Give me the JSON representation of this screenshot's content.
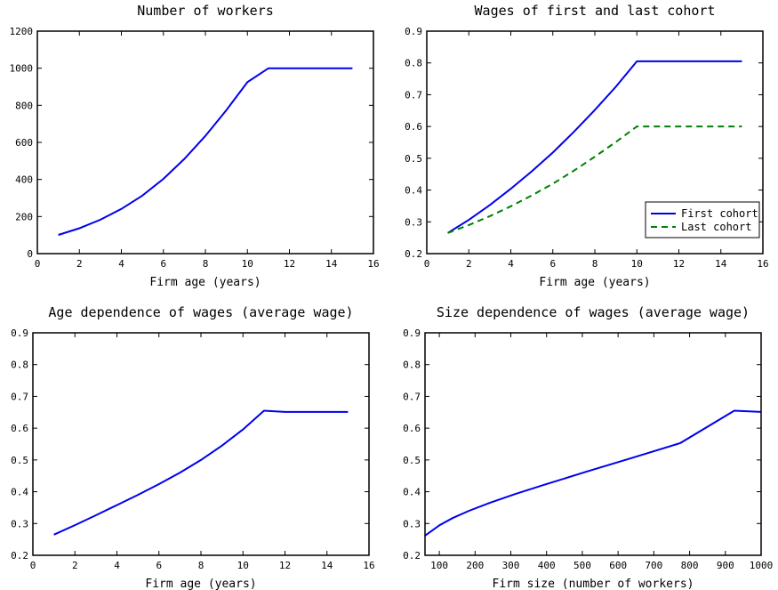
{
  "chart_data": [
    {
      "type": "line",
      "title": "Number of workers",
      "xlabel": "Firm age (years)",
      "ylabel": "",
      "xlim": [
        0,
        16
      ],
      "ylim": [
        0,
        1200
      ],
      "xticks": [
        0,
        2,
        4,
        6,
        8,
        10,
        12,
        14,
        16
      ],
      "yticks": [
        0,
        200,
        400,
        600,
        800,
        1000,
        1200
      ],
      "grid": false,
      "legend": null,
      "series": [
        {
          "color": "#0000ee",
          "style": "solid",
          "x": [
            1,
            2,
            3,
            4,
            5,
            6,
            7,
            8,
            9,
            10,
            11,
            12,
            13,
            14,
            15
          ],
          "y": [
            101,
            137,
            183,
            241,
            313,
            403,
            511,
            635,
            774,
            925,
            1000,
            1000,
            1000,
            1000,
            1000
          ]
        }
      ]
    },
    {
      "type": "line",
      "title": "Wages of first and last cohort",
      "xlabel": "Firm age (years)",
      "ylabel": "",
      "xlim": [
        0,
        16
      ],
      "ylim": [
        0.2,
        0.9
      ],
      "xticks": [
        0,
        2,
        4,
        6,
        8,
        10,
        12,
        14,
        16
      ],
      "yticks": [
        0.2,
        0.3,
        0.4,
        0.5,
        0.6,
        0.7,
        0.8,
        0.9
      ],
      "grid": false,
      "legend": "bottom-right",
      "series": [
        {
          "name": "First cohort",
          "color": "#0000ee",
          "style": "solid",
          "x": [
            1,
            2,
            3,
            4,
            5,
            6,
            7,
            8,
            9,
            10,
            11,
            12,
            13,
            14,
            15
          ],
          "y": [
            0.265,
            0.306,
            0.353,
            0.404,
            0.459,
            0.518,
            0.583,
            0.652,
            0.725,
            0.805,
            0.805,
            0.805,
            0.805,
            0.805,
            0.805
          ]
        },
        {
          "name": "Last cohort",
          "color": "#008000",
          "style": "dashed",
          "x": [
            1,
            2,
            3,
            4,
            5,
            6,
            7,
            8,
            9,
            10,
            11,
            12,
            13,
            14,
            15
          ],
          "y": [
            0.265,
            0.29,
            0.318,
            0.349,
            0.383,
            0.42,
            0.461,
            0.505,
            0.551,
            0.6,
            0.6,
            0.6,
            0.6,
            0.6,
            0.6
          ]
        }
      ]
    },
    {
      "type": "line",
      "title": "Age dependence of wages (average wage)",
      "xlabel": "Firm age (years)",
      "ylabel": "",
      "xlim": [
        0,
        16
      ],
      "ylim": [
        0.2,
        0.9
      ],
      "xticks": [
        0,
        2,
        4,
        6,
        8,
        10,
        12,
        14,
        16
      ],
      "yticks": [
        0.2,
        0.3,
        0.4,
        0.5,
        0.6,
        0.7,
        0.8,
        0.9
      ],
      "grid": false,
      "legend": null,
      "series": [
        {
          "color": "#0000ee",
          "style": "solid",
          "x": [
            1,
            2,
            3,
            4,
            5,
            6,
            7,
            8,
            9,
            10,
            11,
            12,
            13,
            14,
            15
          ],
          "y": [
            0.265,
            0.295,
            0.326,
            0.358,
            0.39,
            0.424,
            0.46,
            0.5,
            0.545,
            0.596,
            0.655,
            0.651,
            0.651,
            0.651,
            0.651
          ]
        }
      ]
    },
    {
      "type": "line",
      "title": "Size dependence of wages (average wage)",
      "xlabel": "Firm size (number of workers)",
      "ylabel": "",
      "xlim": [
        60,
        1000
      ],
      "ylim": [
        0.2,
        0.9
      ],
      "xticks": [
        100,
        200,
        300,
        400,
        500,
        600,
        700,
        800,
        900,
        1000
      ],
      "yticks": [
        0.2,
        0.3,
        0.4,
        0.5,
        0.6,
        0.7,
        0.8,
        0.9
      ],
      "grid": false,
      "legend": null,
      "series": [
        {
          "color": "#0000ee",
          "style": "solid",
          "x": [
            60,
            101,
            137,
            183,
            241,
            313,
            403,
            511,
            635,
            774,
            925,
            1000
          ],
          "y": [
            0.262,
            0.295,
            0.317,
            0.34,
            0.365,
            0.393,
            0.425,
            0.463,
            0.505,
            0.553,
            0.655,
            0.651
          ]
        }
      ]
    }
  ]
}
